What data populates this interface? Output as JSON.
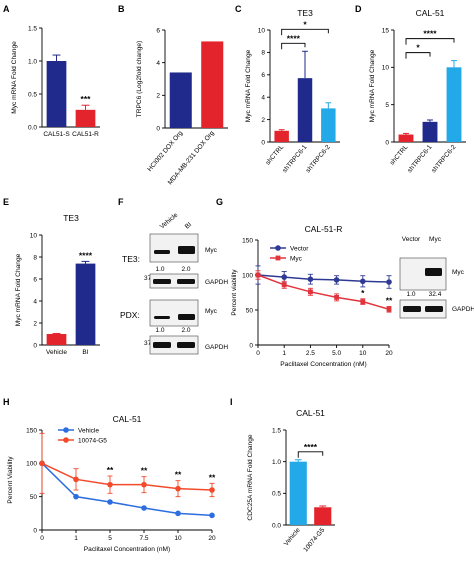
{
  "colors": {
    "blue": "#1f2a8c",
    "red": "#e4242c",
    "cyan": "#23a8e8",
    "vector": "#2e3a93",
    "myc": "#e1343b",
    "vehicle_line": "#2d6ddf",
    "g5": "#f24a2b"
  },
  "chart_data": [
    {
      "panel": "A",
      "type": "bar",
      "title": "",
      "ylabel": "Myc mRNA Fold Change",
      "ylim": [
        0,
        1.5
      ],
      "yticks": [
        "0.0",
        "0.5",
        "1.0",
        "1.5"
      ],
      "categories": [
        "CAL51-S",
        "CAL51-R"
      ],
      "values": [
        1.0,
        0.26
      ],
      "errors": [
        0.09,
        0.07
      ],
      "colors": [
        "blue",
        "red"
      ],
      "annotations": [
        {
          "index": 1,
          "text": "***"
        }
      ]
    },
    {
      "panel": "B",
      "type": "bar",
      "title": "",
      "ylabel": "TRPC6 (Log2fold change)",
      "ylim": [
        0,
        6
      ],
      "yticks": [
        "0",
        "2",
        "4",
        "6"
      ],
      "categories": [
        "HCI002 DOX Org",
        "MDA-MB-231 DOX Org"
      ],
      "values": [
        3.4,
        5.3
      ],
      "errors": [
        0,
        0
      ],
      "colors": [
        "blue",
        "red"
      ],
      "annotations": []
    },
    {
      "panel": "C",
      "type": "bar",
      "title": "TE3",
      "ylabel": "Myc mRNA Fold Change",
      "ylim": [
        0,
        10
      ],
      "yticks": [
        "0",
        "2",
        "4",
        "6",
        "8",
        "10"
      ],
      "categories": [
        "shCTRL",
        "shTRPC6-1",
        "shTRPC6-2"
      ],
      "values": [
        1.0,
        5.7,
        3.0
      ],
      "errors": [
        0.1,
        2.4,
        0.5
      ],
      "colors": [
        "red",
        "blue",
        "cyan"
      ],
      "brackets": [
        {
          "from": 0,
          "to": 1,
          "text": "****"
        },
        {
          "from": 0,
          "to": 2,
          "text": "*"
        }
      ]
    },
    {
      "panel": "D",
      "type": "bar",
      "title": "CAL-51",
      "ylabel": "Myc mRNA Fold Change",
      "ylim": [
        0,
        15
      ],
      "yticks": [
        "0",
        "5",
        "10",
        "15"
      ],
      "categories": [
        "shCTRL",
        "shTRPC6-1",
        "shTRPC6-2"
      ],
      "values": [
        1.0,
        2.7,
        10.0
      ],
      "errors": [
        0.15,
        0.25,
        0.9
      ],
      "colors": [
        "red",
        "blue",
        "cyan"
      ],
      "brackets": [
        {
          "from": 0,
          "to": 1,
          "text": "*"
        },
        {
          "from": 0,
          "to": 2,
          "text": "****"
        }
      ]
    },
    {
      "panel": "E",
      "type": "bar",
      "title": "TE3",
      "ylabel": "Myc mRNA Fold Change",
      "ylim": [
        0,
        10
      ],
      "yticks": [
        "0",
        "2",
        "4",
        "6",
        "8",
        "10"
      ],
      "categories": [
        "Vehicle",
        "BI"
      ],
      "values": [
        1.0,
        7.4
      ],
      "errors": [
        0.05,
        0.2
      ],
      "colors": [
        "red",
        "blue"
      ],
      "annotations": [
        {
          "index": 1,
          "text": "****"
        }
      ]
    },
    {
      "panel": "G",
      "type": "line",
      "title": "CAL-51-R",
      "ylabel": "Percent viability",
      "xlabel": "Paclitaxel Concentration (nM)",
      "ylim": [
        0,
        150
      ],
      "yticks": [
        "0",
        "50",
        "100",
        "150"
      ],
      "x": [
        "0",
        "1",
        "2.5",
        "5.0",
        "10",
        "20"
      ],
      "series": [
        {
          "name": "Vector",
          "color": "vector",
          "marker": "circle",
          "values": [
            100,
            97,
            94,
            93,
            91,
            90
          ],
          "errors": [
            13,
            8,
            7,
            6,
            8,
            9
          ]
        },
        {
          "name": "Myc",
          "color": "myc",
          "marker": "square",
          "values": [
            100,
            86,
            76,
            68,
            62,
            51
          ],
          "errors": [
            6,
            5,
            5,
            5,
            4,
            4
          ]
        }
      ],
      "annotations": [
        {
          "index": 4,
          "text": "*"
        },
        {
          "index": 5,
          "text": "**"
        }
      ],
      "legend": "top-left"
    },
    {
      "panel": "H",
      "type": "line",
      "title": "CAL-51",
      "ylabel": "Percent Viability",
      "xlabel": "Paclitaxel Concentration (nM)",
      "ylim": [
        0,
        150
      ],
      "yticks": [
        "0",
        "50",
        "100",
        "150"
      ],
      "x": [
        "0",
        "1",
        "5",
        "7.5",
        "10",
        "20"
      ],
      "series": [
        {
          "name": "Vehicle",
          "color": "vehicle_line",
          "marker": "circle",
          "values": [
            100,
            50,
            42,
            33,
            25,
            22
          ],
          "errors": [
            0,
            0,
            0,
            0,
            0,
            0
          ]
        },
        {
          "name": "10074-G5",
          "color": "g5",
          "marker": "circle",
          "values": [
            100,
            76,
            68,
            68,
            62,
            60
          ],
          "errors": [
            45,
            16,
            13,
            12,
            12,
            10
          ]
        }
      ],
      "annotations": [
        {
          "index": 2,
          "text": "**"
        },
        {
          "index": 3,
          "text": "**"
        },
        {
          "index": 4,
          "text": "**"
        },
        {
          "index": 5,
          "text": "**"
        }
      ],
      "legend": "top-right"
    },
    {
      "panel": "I",
      "type": "bar",
      "title": "CAL-51",
      "ylabel": "CDC25A mRNA Fold Change",
      "ylim": [
        0,
        1.5
      ],
      "yticks": [
        "0.0",
        "0.5",
        "1.0",
        "1.5"
      ],
      "categories": [
        "Vehicle",
        "10074-G5"
      ],
      "values": [
        1.0,
        0.28
      ],
      "errors": [
        0.03,
        0.02
      ],
      "colors": [
        "cyan",
        "red"
      ],
      "brackets": [
        {
          "from": 0,
          "to": 1,
          "text": "****"
        }
      ]
    }
  ],
  "blots": {
    "panel_label": "F",
    "columns": [
      "Vehicle",
      "BI"
    ],
    "te3_label": "TE3:",
    "pdx_label": "PDX:",
    "myc": "Myc",
    "gapdh": "GAPDH",
    "mw": "37",
    "te3_values": [
      "1.0",
      "2.0"
    ],
    "pdx_values": [
      "1.0",
      "2.0"
    ],
    "g_columns": [
      "Vector",
      "Myc"
    ],
    "g_values": [
      "1.0",
      "32.4"
    ]
  }
}
